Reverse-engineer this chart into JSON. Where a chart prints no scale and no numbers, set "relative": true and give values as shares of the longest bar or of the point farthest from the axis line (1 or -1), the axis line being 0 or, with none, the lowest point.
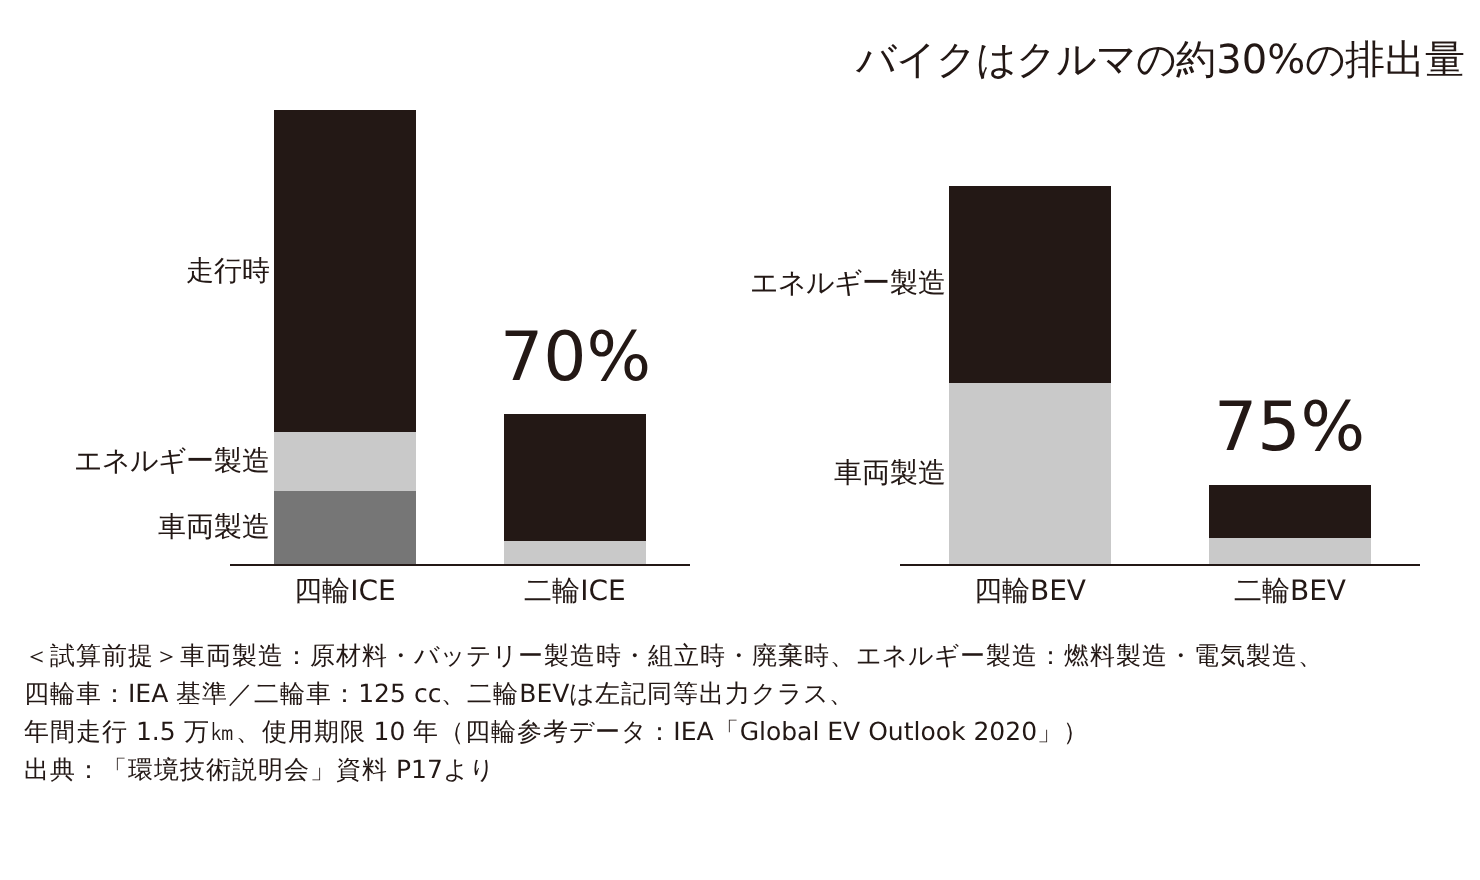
{
  "chart_data": [
    {
      "type": "bar",
      "relative": true,
      "stacked": true,
      "legend": false,
      "grid": false,
      "categories": [
        "四輪ICE",
        "二輪ICE"
      ],
      "series": [
        {
          "name": "車両製造",
          "colors": [
            "#767676",
            "#c9c9c9"
          ],
          "values": [
            0.16,
            0.05
          ]
        },
        {
          "name": "エネルギー製造",
          "colors": [
            "#c9c9c9",
            "#c9c9c9"
          ],
          "values": [
            0.13,
            null
          ]
        },
        {
          "name": "走行時",
          "colors": [
            "#231815",
            "#231815"
          ],
          "values": [
            0.71,
            0.28
          ]
        }
      ],
      "annotations": [
        {
          "text": "70%",
          "x": "二輪ICE",
          "y": 0.33
        }
      ]
    },
    {
      "type": "bar",
      "relative": true,
      "stacked": true,
      "legend": false,
      "grid": false,
      "title": "バイクはクルマの約30%の排出量",
      "categories": [
        "四輪BEV",
        "二輪BEV"
      ],
      "series": [
        {
          "name": "車両製造",
          "color": "#c9c9c9",
          "values": [
            0.48,
            0.07
          ]
        },
        {
          "name": "エネルギー製造",
          "color": "#231815",
          "values": [
            0.52,
            0.14
          ]
        }
      ],
      "annotations": [
        {
          "text": "75%",
          "x": "二輪BEV",
          "y": 0.21
        },
        "＜試算前提＞車両製造：原材料・バッテリー製造時・組立時・廃棄時、エネルギー製造：燃料製造・電気製造、",
        "四輪車：IEA 基準／二輪車：125 cc、二輪BEVは左記同等出力クラス、",
        "年間走行 1.5 万㎞、使用期限 10 年（四輪参考データ：IEA「Global EV Outlook 2020」）",
        "出典：「環境技術説明会」資料 P17より"
      ]
    }
  ]
}
